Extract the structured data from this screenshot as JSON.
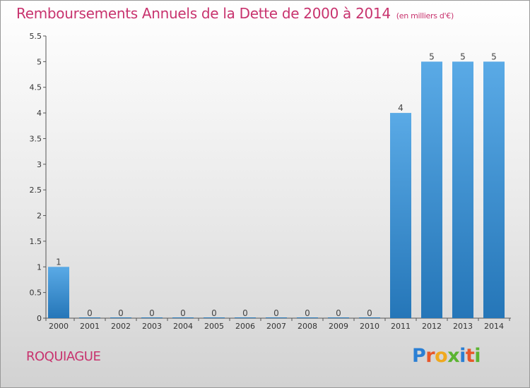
{
  "header": {
    "title": "Remboursements Annuels de la Dette de 2000 à 2014",
    "subtitle": "(en milliers d'€)"
  },
  "footer": {
    "place": "ROQUIAGUE",
    "logo_letters": [
      "P",
      "r",
      "o",
      "x",
      "i",
      "t",
      "i"
    ]
  },
  "colors": {
    "title": "#c8336e",
    "bar_top": "#5aaae6",
    "bar_bottom": "#2576b8",
    "logo": [
      "#2a7fd4",
      "#e8572a",
      "#f0a91e",
      "#5bb431",
      "#2a7fd4",
      "#e8572a",
      "#5bb431"
    ]
  },
  "chart_data": {
    "type": "bar",
    "categories": [
      "2000",
      "2001",
      "2002",
      "2003",
      "2004",
      "2005",
      "2006",
      "2007",
      "2008",
      "2009",
      "2010",
      "2011",
      "2012",
      "2013",
      "2014"
    ],
    "values": [
      1,
      0,
      0,
      0,
      0,
      0,
      0,
      0,
      0,
      0,
      0,
      4,
      5,
      5,
      5
    ],
    "data_labels": [
      "1",
      "0",
      "0",
      "0",
      "0",
      "0",
      "0",
      "0",
      "0",
      "0",
      "0",
      "4",
      "5",
      "5",
      "5"
    ],
    "yticks": [
      "0",
      "0.5",
      "1",
      "1.5",
      "2",
      "2.5",
      "3",
      "3.5",
      "4",
      "4.5",
      "5",
      "5.5"
    ],
    "ylim": [
      0,
      5.5
    ],
    "title": "Remboursements Annuels de la Dette de 2000 à 2014",
    "xlabel": "",
    "ylabel": "",
    "grid": false,
    "legend": "none"
  }
}
